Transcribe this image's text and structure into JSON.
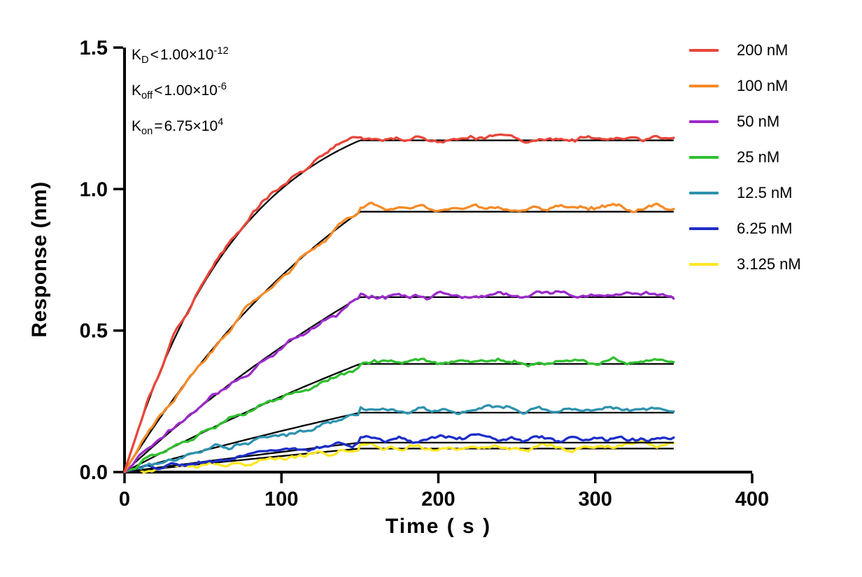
{
  "figure": {
    "background": "#FFFFFF"
  },
  "annotations": [
    {
      "base": "K",
      "sub": "D",
      "relation": "<",
      "mantissa": "1.00×10",
      "exponent": "-12"
    },
    {
      "base": "K",
      "sub": "off",
      "relation": "<",
      "mantissa": "1.00×10",
      "exponent": "-6"
    },
    {
      "base": "K",
      "sub": "on",
      "relation": "=",
      "mantissa": "6.75×10",
      "exponent": "4"
    }
  ],
  "chart_data": {
    "type": "line",
    "title": "",
    "xlabel": "Time ( s )",
    "ylabel": "Response (nm)",
    "xlim": [
      0,
      400
    ],
    "ylim": [
      0,
      1.5
    ],
    "xticks": [
      0,
      100,
      200,
      300,
      400
    ],
    "xtick_labels": [
      "0",
      "100",
      "200",
      "300",
      "400"
    ],
    "yticks": [
      0,
      0.5,
      1.0,
      1.5
    ],
    "ytick_labels": [
      "0.0",
      "0.5",
      "1.0",
      "1.5"
    ],
    "grid": false,
    "legend_position": "top-right",
    "association_end_s": 150,
    "end_s": 350,
    "sample_step_s": 1.75,
    "noise_scale": 0.05,
    "axis_color": "#000000",
    "fit_color": "#000000",
    "series": [
      {
        "label": "200 nM",
        "color": "#E8463A",
        "kobs": 0.0135,
        "assoc_end": 1.18,
        "plateau": 1.18,
        "fit": 1.172
      },
      {
        "label": "100 nM",
        "color": "#F68B28",
        "kobs": 0.0055,
        "assoc_end": 0.92,
        "plateau": 0.935,
        "fit": 0.92
      },
      {
        "label": "50 nM",
        "color": "#9B2BC9",
        "kobs": 0.003,
        "assoc_end": 0.615,
        "plateau": 0.625,
        "fit": 0.618
      },
      {
        "label": "25 nM",
        "color": "#30BF30",
        "kobs": 0.002,
        "assoc_end": 0.375,
        "plateau": 0.39,
        "fit": 0.382
      },
      {
        "label": "12.5 nM",
        "color": "#2E93AE",
        "kobs": 0.0015,
        "assoc_end": 0.195,
        "plateau": 0.222,
        "fit": 0.21
      },
      {
        "label": "6.25 nM",
        "color": "#1D2EC8",
        "kobs": 0.001,
        "assoc_end": 0.102,
        "plateau": 0.12,
        "fit": 0.104
      },
      {
        "label": "3.125 nM",
        "color": "#FFE623",
        "kobs": 0.0009,
        "assoc_end": 0.072,
        "plateau": 0.09,
        "fit": 0.083
      }
    ]
  }
}
